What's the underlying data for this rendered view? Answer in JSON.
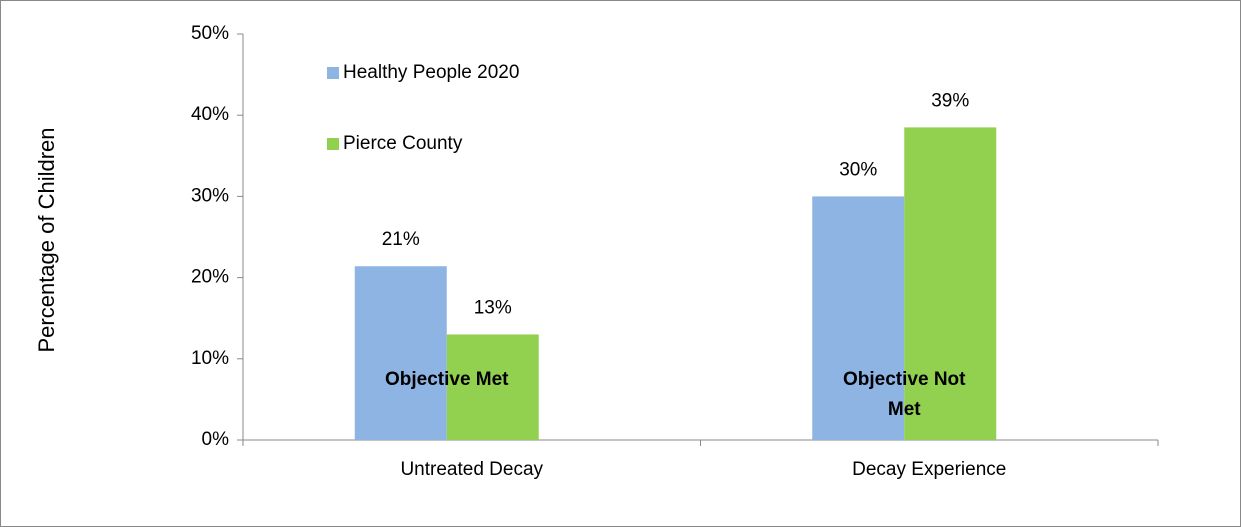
{
  "chart_data": {
    "type": "bar",
    "y_label": "Percentage of Children",
    "categories": [
      "Untreated Decay",
      "Decay Experience"
    ],
    "series": [
      {
        "name": "Healthy People 2020",
        "color": "#8eb4e3",
        "values": [
          21.4,
          30
        ],
        "value_labels": [
          "21%",
          "30%"
        ]
      },
      {
        "name": "Pierce County",
        "color": "#92d050",
        "values": [
          13,
          38.5
        ],
        "value_labels": [
          "13%",
          "39%"
        ]
      }
    ],
    "ylim": [
      0,
      50
    ],
    "yticks": [
      {
        "value": 0,
        "label": "0%"
      },
      {
        "value": 10,
        "label": "10%"
      },
      {
        "value": 20,
        "label": "20%"
      },
      {
        "value": 30,
        "label": "30%"
      },
      {
        "value": 40,
        "label": "40%"
      },
      {
        "value": 50,
        "label": "50%"
      }
    ],
    "annotations": [
      "Objective Met",
      "Objective Not Met"
    ],
    "legend": "top-left"
  }
}
